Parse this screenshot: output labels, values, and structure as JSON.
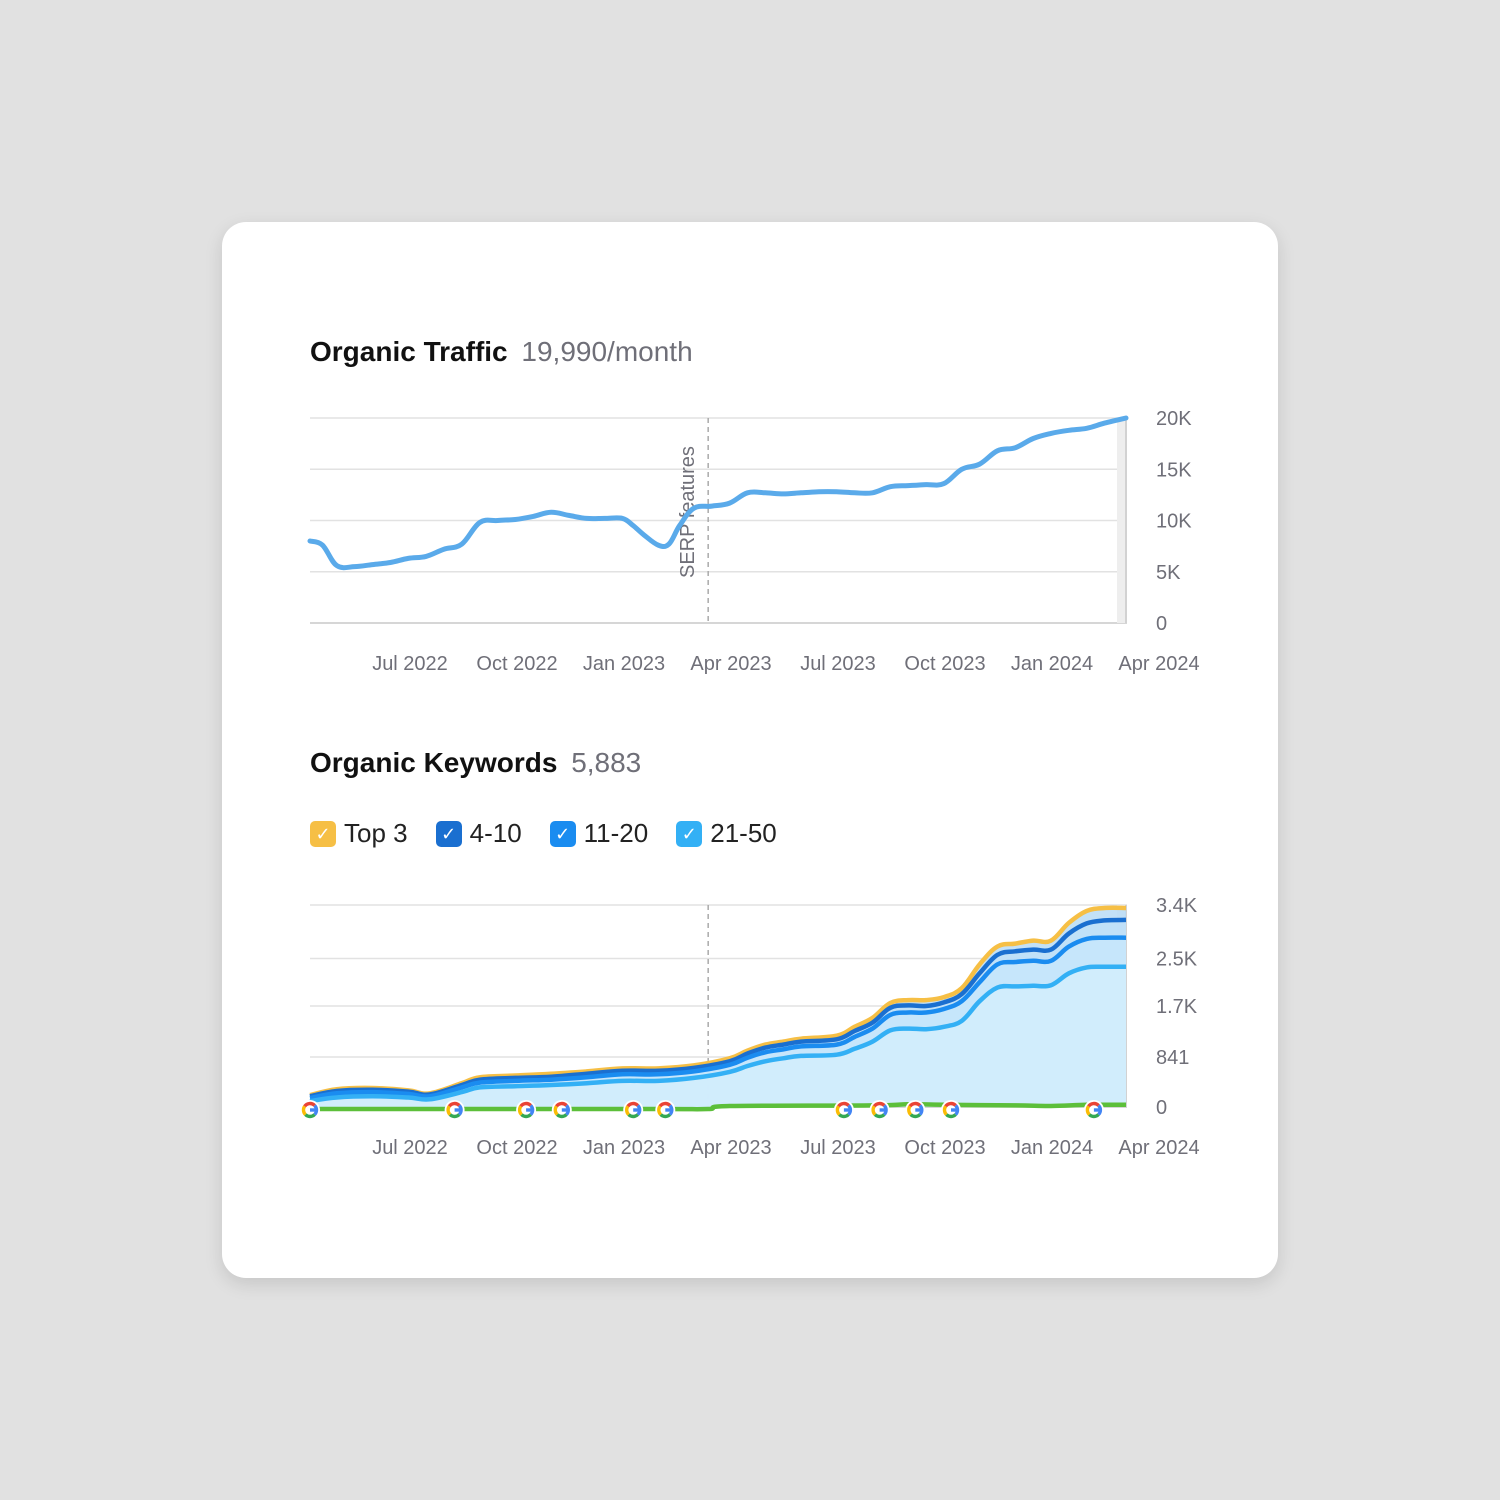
{
  "colors": {
    "traffic_line": "#5aaaea",
    "top3": "#f6bf45",
    "pos_4_10": "#1a6fd0",
    "pos_11_20": "#1a8cf0",
    "pos_21_50": "#33b0f5",
    "serp_line": "#5cbf3a",
    "grid": "#e2e2e2"
  },
  "traffic": {
    "title": "Organic Traffic",
    "value": "19,990/month",
    "annotation": "SERP features"
  },
  "keywords": {
    "title": "Organic Keywords",
    "value": "5,883",
    "legend": [
      {
        "label": "Top 3",
        "color": "#f6bf45",
        "icon": "check-icon"
      },
      {
        "label": "4-10",
        "color": "#1a6fd0",
        "icon": "check-icon"
      },
      {
        "label": "11-20",
        "color": "#1a8cf0",
        "icon": "check-icon"
      },
      {
        "label": "21-50",
        "color": "#33b0f5",
        "icon": "check-icon"
      }
    ]
  },
  "chart_data": [
    {
      "type": "line",
      "title": "Organic Traffic",
      "x_tick_labels": [
        "Jul 2022",
        "Oct 2022",
        "Jan 2023",
        "Apr 2023",
        "Jul 2023",
        "Oct 2023",
        "Jan 2024",
        "Apr 2024"
      ],
      "x_tick_months": [
        3,
        6,
        9,
        12,
        15,
        18,
        21,
        24
      ],
      "x_range_months": [
        0.25,
        23.1
      ],
      "y_tick_labels": [
        "0",
        "5K",
        "10K",
        "15K",
        "20K"
      ],
      "y_ticks": [
        0,
        5000,
        10000,
        15000,
        20000
      ],
      "ylim": [
        0,
        20000
      ],
      "annotation": {
        "label": "SERP features",
        "month": 11.4
      },
      "series": [
        {
          "x": [
            0.25,
            0.6,
            1.0,
            1.5,
            2.0,
            2.5,
            3.0,
            3.5,
            4.0,
            4.5,
            5.0,
            5.5,
            6.0,
            6.5,
            7.0,
            7.5,
            8.0,
            8.5,
            9.0,
            9.3,
            9.6,
            10.0,
            10.3,
            10.6,
            11.0,
            11.5,
            12.0,
            12.5,
            13.0,
            13.5,
            14.0,
            14.5,
            15.0,
            15.5,
            16.0,
            16.5,
            17.0,
            17.5,
            18.0,
            18.5,
            19.0,
            19.5,
            20.0,
            20.5,
            21.0,
            21.5,
            22.0,
            22.5,
            23.1
          ],
          "values": [
            8000,
            7600,
            5600,
            5500,
            5700,
            5900,
            6300,
            6500,
            7200,
            7700,
            9800,
            10000,
            10100,
            10400,
            10800,
            10500,
            10200,
            10200,
            10200,
            9500,
            8600,
            7600,
            7700,
            9500,
            11200,
            11400,
            11700,
            12700,
            12700,
            12600,
            12700,
            12800,
            12800,
            12700,
            12700,
            13300,
            13400,
            13500,
            13600,
            15000,
            15500,
            16800,
            17100,
            18000,
            18500,
            18800,
            19000,
            19500,
            20000
          ]
        }
      ]
    },
    {
      "type": "area",
      "title": "Organic Keywords",
      "x_tick_labels": [
        "Jul 2022",
        "Oct 2022",
        "Jan 2023",
        "Apr 2023",
        "Jul 2023",
        "Oct 2023",
        "Jan 2024",
        "Apr 2024"
      ],
      "x_tick_months": [
        3,
        6,
        9,
        12,
        15,
        18,
        21,
        24
      ],
      "x_range_months": [
        0.25,
        23.1
      ],
      "y_tick_labels": [
        "0",
        "841",
        "1.7K",
        "2.5K",
        "3.4K"
      ],
      "y_ticks": [
        0,
        841,
        1700,
        2500,
        3400
      ],
      "ylim": [
        0,
        3400
      ],
      "series": [
        {
          "name": "Top 3",
          "color": "#f6bf45",
          "x": [
            0.25,
            1,
            2,
            3,
            3.6,
            4.5,
            5,
            6,
            7,
            8,
            9,
            10,
            11,
            12,
            12.5,
            13,
            13.5,
            14,
            15,
            15.5,
            16,
            16.5,
            17,
            17.5,
            18,
            18.5,
            19,
            19.5,
            20,
            20.5,
            21,
            21.5,
            22,
            22.5,
            23.1
          ],
          "values": [
            200,
            300,
            320,
            280,
            230,
            400,
            500,
            530,
            560,
            600,
            650,
            650,
            700,
            820,
            950,
            1050,
            1100,
            1150,
            1200,
            1350,
            1500,
            1750,
            1800,
            1800,
            1850,
            2000,
            2400,
            2700,
            2750,
            2800,
            2800,
            3100,
            3300,
            3350,
            3350
          ]
        },
        {
          "name": "4-10",
          "color": "#1a6fd0",
          "x": [
            0.25,
            1,
            2,
            3,
            3.6,
            4.5,
            5,
            6,
            7,
            8,
            9,
            10,
            11,
            12,
            12.5,
            13,
            13.5,
            14,
            15,
            15.5,
            16,
            16.5,
            17,
            17.5,
            18,
            18.5,
            19,
            19.5,
            20,
            20.5,
            21,
            21.5,
            22,
            22.5,
            23.1
          ],
          "values": [
            180,
            270,
            290,
            260,
            210,
            370,
            460,
            490,
            510,
            560,
            610,
            610,
            660,
            770,
            900,
            1000,
            1050,
            1100,
            1140,
            1280,
            1420,
            1670,
            1710,
            1700,
            1760,
            1900,
            2250,
            2560,
            2620,
            2650,
            2650,
            2920,
            3090,
            3140,
            3150
          ]
        },
        {
          "name": "11-20",
          "color": "#1a8cf0",
          "x": [
            0.25,
            1,
            2,
            3,
            3.6,
            4.5,
            5,
            6,
            7,
            8,
            9,
            10,
            11,
            12,
            12.5,
            13,
            13.5,
            14,
            15,
            15.5,
            16,
            16.5,
            17,
            17.5,
            18,
            18.5,
            19,
            19.5,
            20,
            20.5,
            21,
            21.5,
            22,
            22.5,
            23.1
          ],
          "values": [
            150,
            230,
            250,
            220,
            180,
            330,
            410,
            440,
            460,
            500,
            550,
            550,
            600,
            710,
            830,
            920,
            970,
            1020,
            1050,
            1180,
            1320,
            1550,
            1590,
            1590,
            1650,
            1780,
            2100,
            2400,
            2440,
            2460,
            2460,
            2700,
            2830,
            2850,
            2850
          ]
        },
        {
          "name": "21-50",
          "color": "#33b0f5",
          "x": [
            0.25,
            1,
            2,
            3,
            3.6,
            4.5,
            5,
            6,
            7,
            8,
            9,
            10,
            11,
            12,
            12.5,
            13,
            13.5,
            14,
            15,
            15.5,
            16,
            16.5,
            17,
            17.5,
            18,
            18.5,
            19,
            19.5,
            20,
            20.5,
            21,
            21.5,
            22,
            22.5,
            23.1
          ],
          "values": [
            100,
            160,
            180,
            160,
            130,
            250,
            330,
            350,
            370,
            400,
            440,
            440,
            490,
            590,
            690,
            770,
            820,
            860,
            880,
            980,
            1100,
            1290,
            1320,
            1310,
            1350,
            1450,
            1780,
            2010,
            2030,
            2040,
            2050,
            2250,
            2350,
            2360,
            2360
          ]
        },
        {
          "name": "SERP features",
          "color": "#5cbf3a",
          "x": [
            0.25,
            5,
            10,
            11.4,
            12,
            16,
            17,
            18,
            20,
            21,
            22,
            23.1
          ],
          "values": [
            0,
            0,
            0,
            0,
            50,
            60,
            80,
            70,
            60,
            50,
            70,
            70
          ]
        }
      ],
      "serp_feature_markers_months": [
        0.25,
        4.3,
        6.3,
        7.3,
        9.3,
        10.2,
        15.2,
        16.2,
        17.2,
        18.2,
        22.2
      ]
    }
  ]
}
